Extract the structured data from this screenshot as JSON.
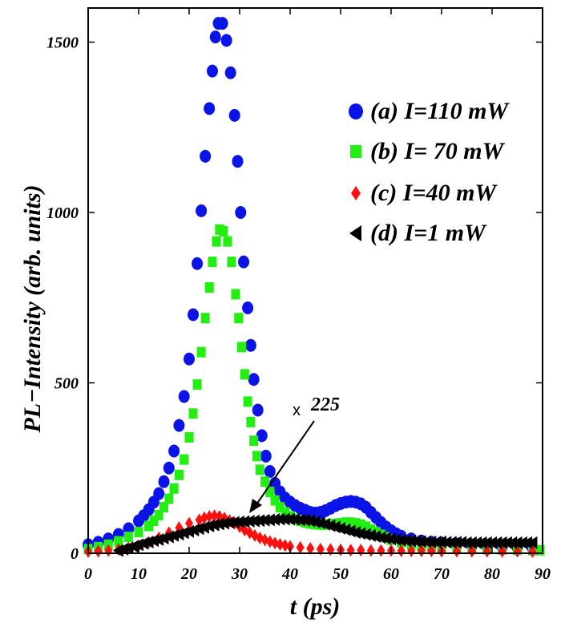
{
  "chart_data": {
    "type": "scatter",
    "title": "",
    "xlabel": "t (ps)",
    "ylabel": "PL−Intensity (arb. units)",
    "xlim": [
      0,
      90
    ],
    "ylim": [
      0,
      1600
    ],
    "x_ticks": [
      "0",
      "10",
      "20",
      "30",
      "40",
      "50",
      "60",
      "70",
      "80",
      "90"
    ],
    "y_ticks": [
      "0",
      "500",
      "1000",
      "1500"
    ],
    "grid": false,
    "legend_position": "top-right",
    "annotation": {
      "prefix": "x",
      "text": "225"
    },
    "series": [
      {
        "name": "(a) I=110 mW",
        "marker": "circle",
        "color": "#0a14e6",
        "points": [
          [
            0,
            25
          ],
          [
            2,
            32
          ],
          [
            4,
            42
          ],
          [
            6,
            55
          ],
          [
            8,
            72
          ],
          [
            10,
            95
          ],
          [
            11,
            110
          ],
          [
            12,
            128
          ],
          [
            13,
            150
          ],
          [
            14,
            175
          ],
          [
            15,
            210
          ],
          [
            16,
            250
          ],
          [
            17,
            300
          ],
          [
            18,
            375
          ],
          [
            19,
            460
          ],
          [
            20,
            570
          ],
          [
            20.8,
            700
          ],
          [
            21.6,
            850
          ],
          [
            22.4,
            1005
          ],
          [
            23.2,
            1165
          ],
          [
            24,
            1305
          ],
          [
            24.6,
            1415
          ],
          [
            25.2,
            1515
          ],
          [
            25.8,
            1555
          ],
          [
            26.6,
            1555
          ],
          [
            27.4,
            1505
          ],
          [
            28.2,
            1410
          ],
          [
            29,
            1285
          ],
          [
            29.6,
            1150
          ],
          [
            30.2,
            1000
          ],
          [
            30.8,
            855
          ],
          [
            31.6,
            720
          ],
          [
            32.2,
            610
          ],
          [
            32.8,
            510
          ],
          [
            33.6,
            420
          ],
          [
            34.4,
            345
          ],
          [
            35.2,
            285
          ],
          [
            36,
            240
          ],
          [
            37,
            205
          ],
          [
            38,
            180
          ],
          [
            39,
            162
          ],
          [
            40,
            150
          ],
          [
            41,
            140
          ],
          [
            42,
            132
          ],
          [
            43,
            126
          ],
          [
            44,
            120
          ],
          [
            45,
            118
          ],
          [
            46,
            120
          ],
          [
            47,
            125
          ],
          [
            48,
            132
          ],
          [
            49,
            140
          ],
          [
            50,
            146
          ],
          [
            51,
            150
          ],
          [
            52,
            152
          ],
          [
            53,
            150
          ],
          [
            54,
            145
          ],
          [
            55,
            135
          ],
          [
            56,
            120
          ],
          [
            57,
            105
          ],
          [
            58,
            90
          ],
          [
            59,
            77
          ],
          [
            60,
            66
          ],
          [
            61,
            57
          ],
          [
            62,
            50
          ],
          [
            64,
            42
          ],
          [
            66,
            36
          ],
          [
            68,
            32
          ],
          [
            70,
            30
          ],
          [
            73,
            27
          ],
          [
            76,
            24
          ],
          [
            79,
            22
          ],
          [
            82,
            20
          ],
          [
            85,
            18
          ],
          [
            88,
            16
          ]
        ]
      },
      {
        "name": "(b) I= 70 mW",
        "marker": "square",
        "color": "#22ee11",
        "points": [
          [
            0,
            12
          ],
          [
            2,
            18
          ],
          [
            4,
            25
          ],
          [
            6,
            35
          ],
          [
            8,
            48
          ],
          [
            10,
            62
          ],
          [
            12,
            80
          ],
          [
            13,
            95
          ],
          [
            14,
            112
          ],
          [
            15,
            135
          ],
          [
            16,
            160
          ],
          [
            17,
            190
          ],
          [
            18,
            230
          ],
          [
            19,
            275
          ],
          [
            20,
            340
          ],
          [
            20.8,
            410
          ],
          [
            21.6,
            495
          ],
          [
            22.4,
            590
          ],
          [
            23.2,
            690
          ],
          [
            24,
            780
          ],
          [
            24.6,
            855
          ],
          [
            25.4,
            915
          ],
          [
            26,
            950
          ],
          [
            26.8,
            945
          ],
          [
            27.6,
            915
          ],
          [
            28.4,
            855
          ],
          [
            29.2,
            760
          ],
          [
            29.8,
            690
          ],
          [
            30.4,
            605
          ],
          [
            31,
            525
          ],
          [
            31.6,
            445
          ],
          [
            32.2,
            385
          ],
          [
            32.8,
            330
          ],
          [
            33.4,
            285
          ],
          [
            34,
            245
          ],
          [
            35,
            210
          ],
          [
            36,
            180
          ],
          [
            37,
            155
          ],
          [
            38,
            135
          ],
          [
            39,
            120
          ],
          [
            40,
            108
          ],
          [
            41,
            100
          ],
          [
            42,
            95
          ],
          [
            43,
            90
          ],
          [
            44,
            87
          ],
          [
            45,
            85
          ],
          [
            46,
            84
          ],
          [
            47,
            84
          ],
          [
            48,
            85
          ],
          [
            49,
            86
          ],
          [
            50,
            88
          ],
          [
            51,
            90
          ],
          [
            52,
            90
          ],
          [
            53,
            88
          ],
          [
            54,
            84
          ],
          [
            55,
            78
          ],
          [
            56,
            70
          ],
          [
            57,
            62
          ],
          [
            58,
            54
          ],
          [
            59,
            47
          ],
          [
            60,
            40
          ],
          [
            62,
            32
          ],
          [
            64,
            26
          ],
          [
            66,
            22
          ],
          [
            68,
            19
          ],
          [
            70,
            17
          ],
          [
            73,
            15
          ],
          [
            76,
            13
          ],
          [
            79,
            12
          ],
          [
            82,
            11
          ],
          [
            85,
            10
          ],
          [
            88,
            9
          ],
          [
            89.5,
            9
          ]
        ]
      },
      {
        "name": "(c) I=40 mW",
        "marker": "diamond",
        "color": "#ff1010",
        "points": [
          [
            0,
            5
          ],
          [
            2,
            6
          ],
          [
            4,
            8
          ],
          [
            6,
            11
          ],
          [
            8,
            15
          ],
          [
            10,
            22
          ],
          [
            12,
            32
          ],
          [
            14,
            45
          ],
          [
            16,
            60
          ],
          [
            18,
            75
          ],
          [
            20,
            88
          ],
          [
            22,
            98
          ],
          [
            23,
            104
          ],
          [
            24,
            108
          ],
          [
            25,
            110
          ],
          [
            26,
            108
          ],
          [
            27,
            103
          ],
          [
            28,
            96
          ],
          [
            29,
            88
          ],
          [
            30,
            78
          ],
          [
            31,
            68
          ],
          [
            32,
            60
          ],
          [
            33,
            52
          ],
          [
            34,
            45
          ],
          [
            35,
            39
          ],
          [
            36,
            34
          ],
          [
            37,
            30
          ],
          [
            38,
            26
          ],
          [
            39,
            23
          ],
          [
            40,
            20
          ],
          [
            42,
            17
          ],
          [
            44,
            14
          ],
          [
            46,
            12
          ],
          [
            48,
            11
          ],
          [
            50,
            10
          ],
          [
            52,
            9
          ],
          [
            54,
            9
          ],
          [
            56,
            8
          ],
          [
            58,
            8
          ],
          [
            60,
            8
          ],
          [
            62,
            7
          ],
          [
            64,
            7
          ],
          [
            66,
            7
          ],
          [
            68,
            7
          ],
          [
            70,
            6
          ],
          [
            73,
            6
          ],
          [
            76,
            6
          ],
          [
            79,
            6
          ],
          [
            82,
            6
          ],
          [
            85,
            6
          ],
          [
            88,
            5
          ]
        ]
      },
      {
        "name": "(d) I=1 mW",
        "marker": "triangle-left",
        "color": "#000000",
        "points": [
          [
            6,
            8
          ],
          [
            7,
            12
          ],
          [
            8,
            16
          ],
          [
            9,
            20
          ],
          [
            10,
            25
          ],
          [
            11,
            29
          ],
          [
            12,
            33
          ],
          [
            13,
            37
          ],
          [
            14,
            40
          ],
          [
            15,
            44
          ],
          [
            16,
            48
          ],
          [
            17,
            52
          ],
          [
            18,
            56
          ],
          [
            19,
            60
          ],
          [
            20,
            64
          ],
          [
            21,
            68
          ],
          [
            22,
            72
          ],
          [
            23,
            76
          ],
          [
            24,
            80
          ],
          [
            25,
            83
          ],
          [
            26,
            86
          ],
          [
            27,
            88
          ],
          [
            28,
            90
          ],
          [
            29,
            91
          ],
          [
            30,
            92
          ],
          [
            31,
            93
          ],
          [
            32,
            94
          ],
          [
            33,
            95
          ],
          [
            34,
            96
          ],
          [
            35,
            97
          ],
          [
            36,
            98
          ],
          [
            37,
            99
          ],
          [
            38,
            100
          ],
          [
            39,
            100
          ],
          [
            40,
            100
          ],
          [
            41,
            99
          ],
          [
            42,
            98
          ],
          [
            43,
            97
          ],
          [
            44,
            95
          ],
          [
            45,
            92
          ],
          [
            46,
            89
          ],
          [
            47,
            85
          ],
          [
            48,
            81
          ],
          [
            49,
            77
          ],
          [
            50,
            73
          ],
          [
            51,
            69
          ],
          [
            52,
            65
          ],
          [
            53,
            61
          ],
          [
            54,
            58
          ],
          [
            55,
            55
          ],
          [
            56,
            52
          ],
          [
            57,
            49
          ],
          [
            58,
            46
          ],
          [
            59,
            44
          ],
          [
            60,
            42
          ],
          [
            61,
            40
          ],
          [
            62,
            38
          ],
          [
            63,
            37
          ],
          [
            64,
            36
          ],
          [
            65,
            35
          ],
          [
            66,
            34
          ],
          [
            67,
            34
          ],
          [
            68,
            33
          ],
          [
            69,
            33
          ],
          [
            70,
            33
          ],
          [
            71,
            32
          ],
          [
            72,
            32
          ],
          [
            73,
            32
          ],
          [
            74,
            32
          ],
          [
            75,
            31
          ],
          [
            76,
            31
          ],
          [
            77,
            31
          ],
          [
            78,
            31
          ],
          [
            79,
            31
          ],
          [
            80,
            31
          ],
          [
            81,
            31
          ],
          [
            82,
            31
          ],
          [
            83,
            31
          ],
          [
            84,
            31
          ],
          [
            85,
            31
          ],
          [
            86,
            31
          ],
          [
            87,
            31
          ],
          [
            88,
            31
          ]
        ]
      }
    ]
  }
}
